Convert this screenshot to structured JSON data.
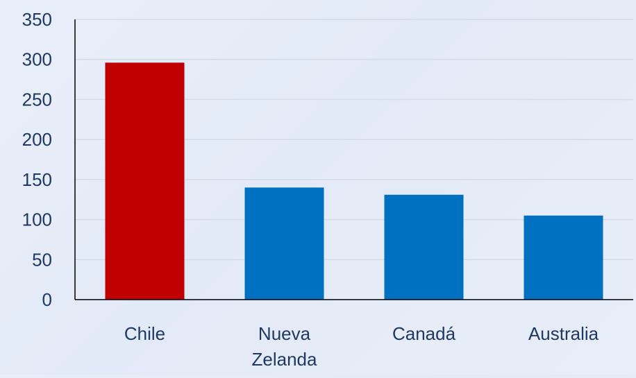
{
  "chart_data": {
    "type": "bar",
    "title": "",
    "xlabel": "",
    "ylabel": "",
    "categories": [
      "Chile",
      "Nueva Zelanda",
      "Canadá",
      "Australia"
    ],
    "category_label_lines": [
      [
        "Chile"
      ],
      [
        "Nueva",
        "Zelanda"
      ],
      [
        "Canadá"
      ],
      [
        "Australia"
      ]
    ],
    "values": [
      296,
      140,
      131,
      105
    ],
    "bar_colors": [
      "#C00000",
      "#0070C0",
      "#0070C0",
      "#0070C0"
    ],
    "ylim": [
      0,
      350
    ],
    "yticks": [
      0,
      50,
      100,
      150,
      200,
      250,
      300,
      350
    ],
    "grid": true,
    "legend": "none",
    "colors": {
      "text": "#1F3864",
      "axis": "#000000",
      "grid": "#d3dbe8"
    }
  }
}
